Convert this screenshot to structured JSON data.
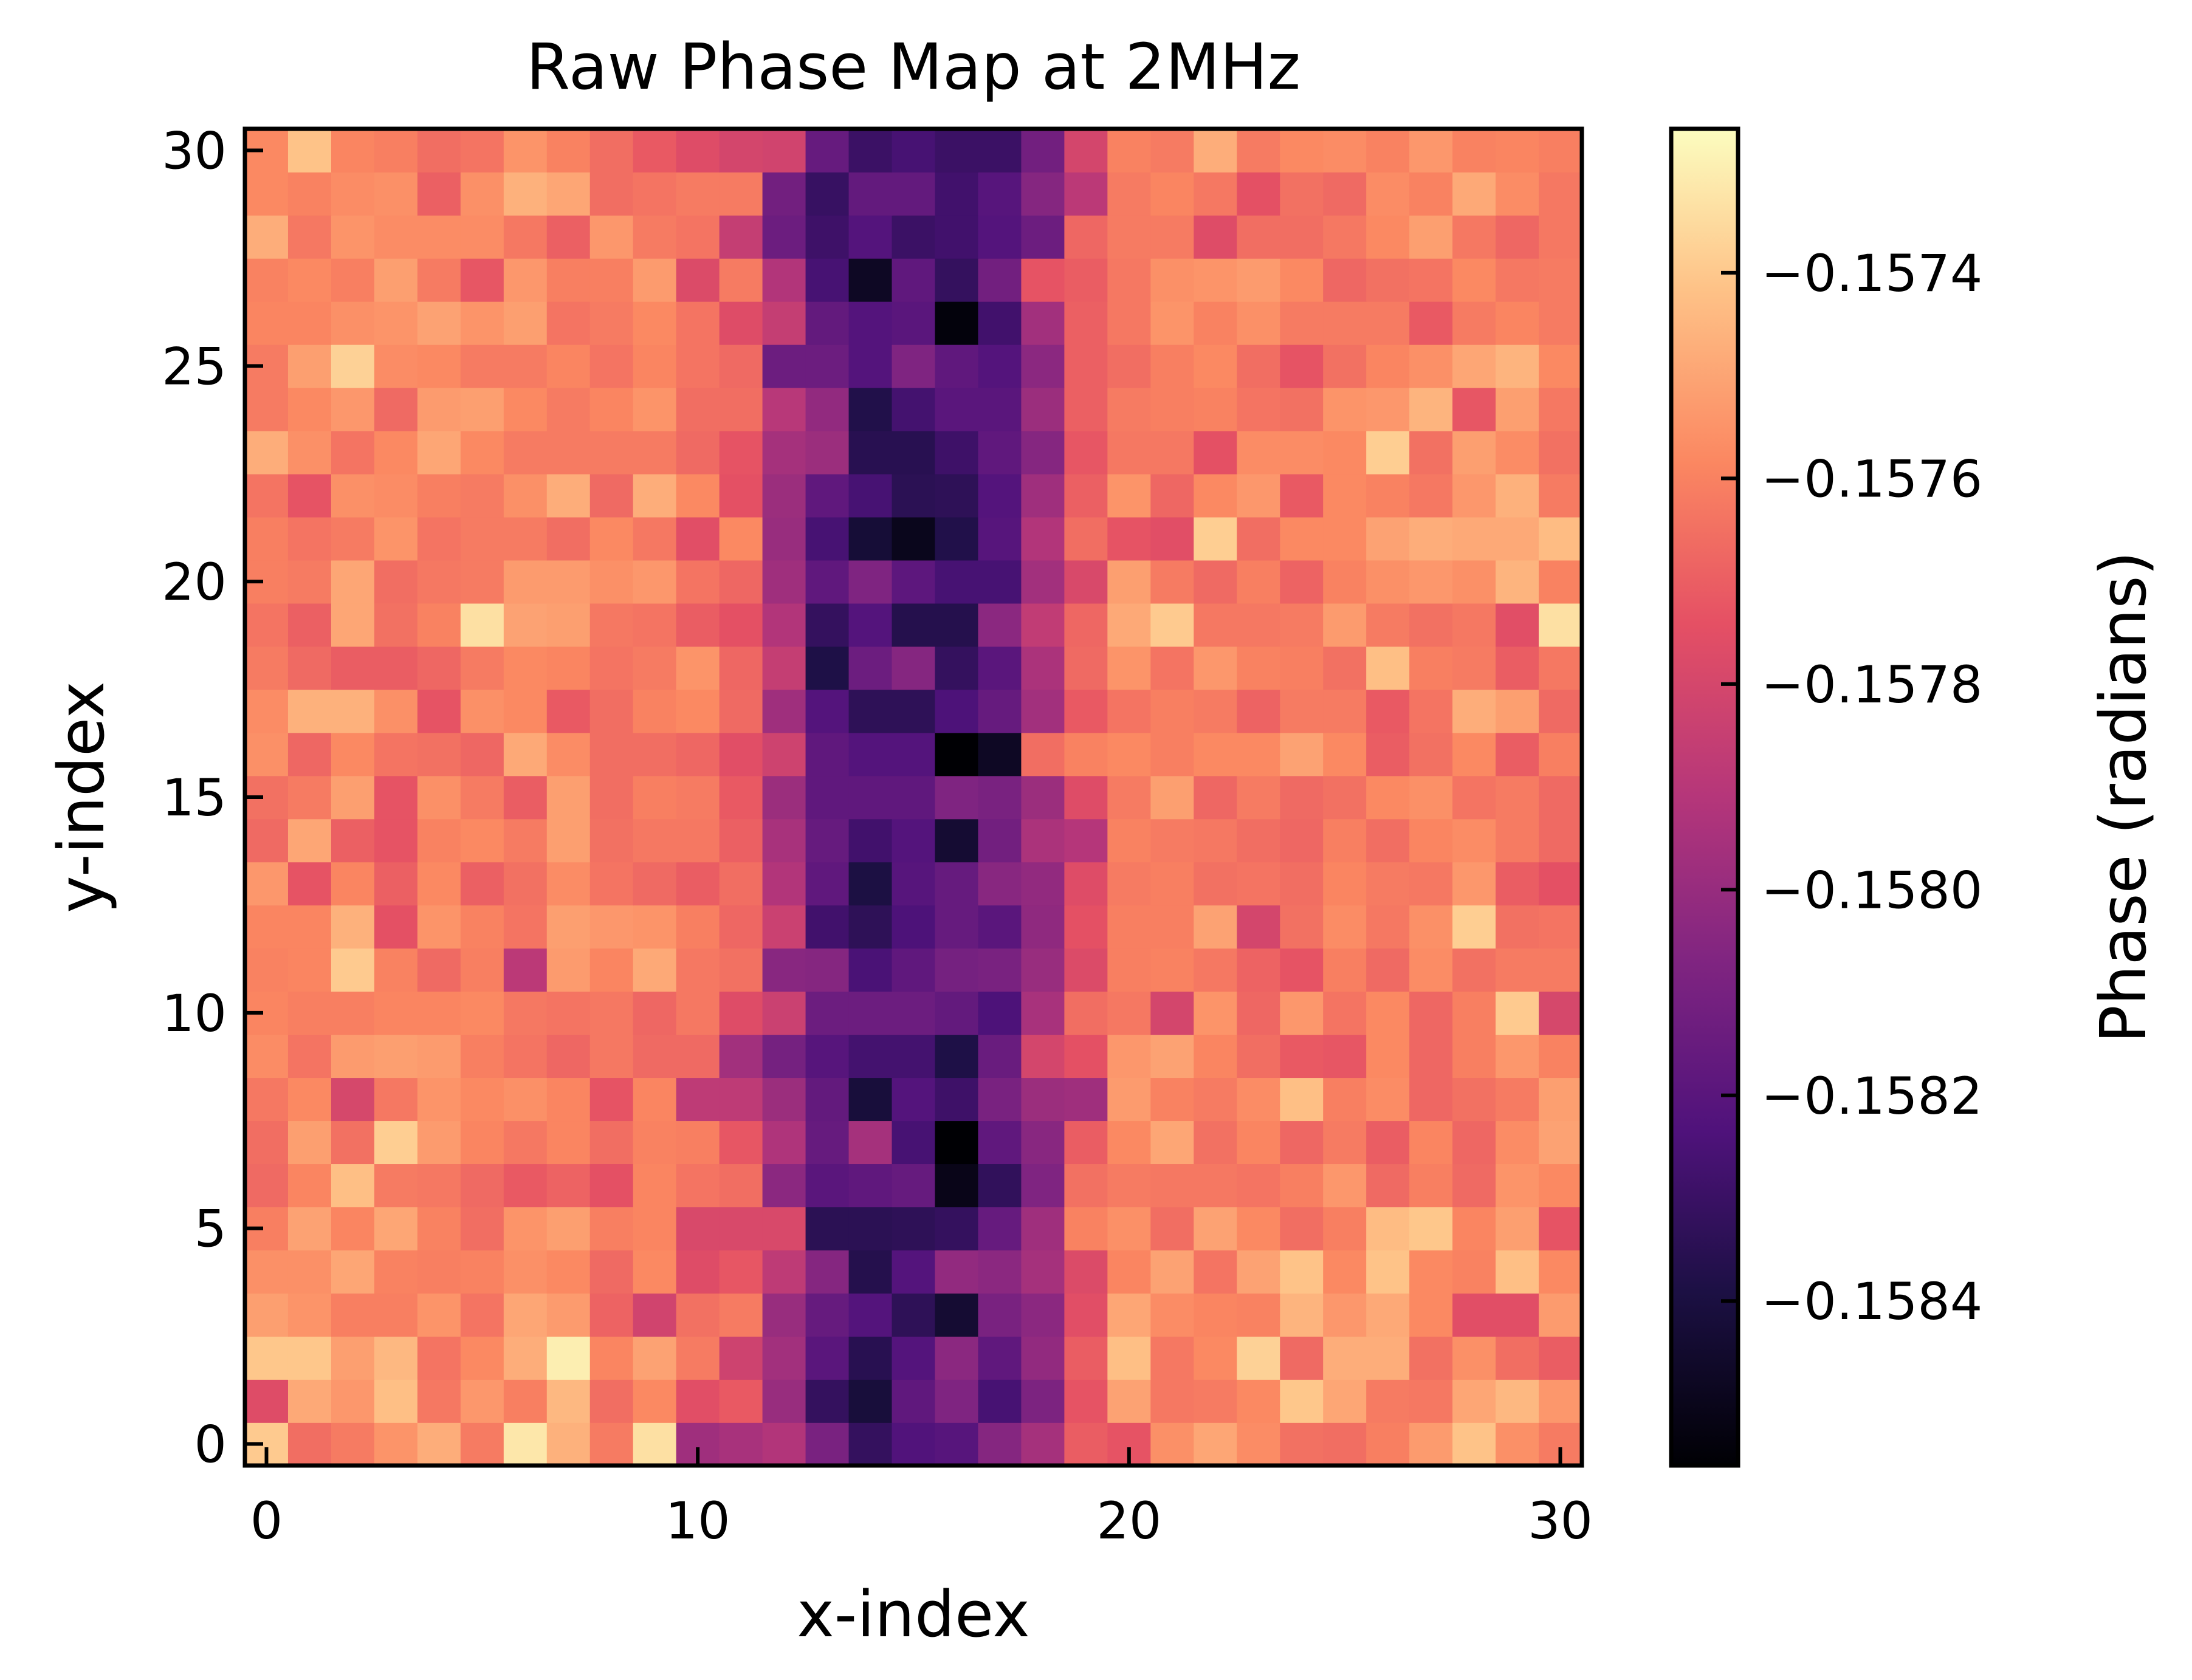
{
  "chart_data": {
    "type": "heatmap",
    "title": "Raw Phase Map at 2MHz",
    "xlabel": "x-index",
    "ylabel": "y-index",
    "xlim": [
      -0.5,
      30.5
    ],
    "ylim": [
      -0.5,
      30.5
    ],
    "xticks": [
      0,
      10,
      20,
      30
    ],
    "xtick_labels": [
      "0",
      "10",
      "20",
      "30"
    ],
    "yticks": [
      0,
      5,
      10,
      15,
      20,
      25,
      30
    ],
    "ytick_labels": [
      "0",
      "5",
      "10",
      "15",
      "20",
      "25",
      "30"
    ],
    "colormap": "magma",
    "colorbar": {
      "label": "Phase (radians)",
      "vmin": -0.15856,
      "vmax": -0.15726,
      "ticks": [
        -0.1574,
        -0.1576,
        -0.1578,
        -0.158,
        -0.1582,
        -0.1584
      ],
      "tick_labels": [
        "−0.1574",
        "−0.1576",
        "−0.1578",
        "−0.1580",
        "−0.1582",
        "−0.1584"
      ]
    },
    "grid": false,
    "description_of_values": "31x31 grid, rows indexed by y from 0 (bottom) to 30 (top), columns by x from 0 to 30; values in radians",
    "values": [
      [
        -0.1574,
        -0.15766,
        -0.15762,
        -0.15755,
        -0.15748,
        -0.15762,
        -0.15732,
        -0.15747,
        -0.15762,
        -0.15734,
        -0.15798,
        -0.15795,
        -0.15792,
        -0.1581,
        -0.15832,
        -0.15823,
        -0.15821,
        -0.15806,
        -0.15796,
        -0.15771,
        -0.15774,
        -0.15756,
        -0.1575,
        -0.15757,
        -0.15765,
        -0.15766,
        -0.15761,
        -0.15753,
        -0.15742,
        -0.15756,
        -0.15762
      ],
      [
        -0.15777,
        -0.15749,
        -0.15754,
        -0.15743,
        -0.15763,
        -0.15754,
        -0.15761,
        -0.15745,
        -0.15766,
        -0.15758,
        -0.15776,
        -0.15772,
        -0.158,
        -0.15832,
        -0.15842,
        -0.15818,
        -0.15808,
        -0.15826,
        -0.15809,
        -0.15774,
        -0.15751,
        -0.15763,
        -0.15762,
        -0.15758,
        -0.15741,
        -0.1575,
        -0.15762,
        -0.15763,
        -0.1575,
        -0.15745,
        -0.15754
      ],
      [
        -0.15741,
        -0.15741,
        -0.15752,
        -0.15745,
        -0.15764,
        -0.15758,
        -0.15748,
        -0.1573,
        -0.15759,
        -0.15751,
        -0.15762,
        -0.15783,
        -0.15797,
        -0.1582,
        -0.15836,
        -0.15822,
        -0.15804,
        -0.15818,
        -0.15802,
        -0.15771,
        -0.15743,
        -0.15763,
        -0.15758,
        -0.15738,
        -0.15767,
        -0.15748,
        -0.15748,
        -0.15765,
        -0.15756,
        -0.15766,
        -0.15771
      ],
      [
        -0.15752,
        -0.15755,
        -0.15761,
        -0.15761,
        -0.15755,
        -0.15764,
        -0.1575,
        -0.15753,
        -0.15769,
        -0.15782,
        -0.15765,
        -0.15762,
        -0.158,
        -0.15816,
        -0.15822,
        -0.15834,
        -0.15844,
        -0.1581,
        -0.15804,
        -0.15776,
        -0.1575,
        -0.15757,
        -0.15759,
        -0.1576,
        -0.15746,
        -0.15754,
        -0.15749,
        -0.15758,
        -0.15776,
        -0.15776,
        -0.15753
      ],
      [
        -0.15756,
        -0.15756,
        -0.1575,
        -0.1576,
        -0.15761,
        -0.1576,
        -0.15756,
        -0.15758,
        -0.15767,
        -0.15758,
        -0.15777,
        -0.15773,
        -0.15788,
        -0.15806,
        -0.15837,
        -0.15822,
        -0.15802,
        -0.15804,
        -0.15796,
        -0.15778,
        -0.15759,
        -0.15751,
        -0.15764,
        -0.15751,
        -0.15742,
        -0.15758,
        -0.15742,
        -0.15758,
        -0.1576,
        -0.15743,
        -0.15758
      ],
      [
        -0.15761,
        -0.15751,
        -0.15759,
        -0.1575,
        -0.1576,
        -0.15766,
        -0.15755,
        -0.15752,
        -0.15761,
        -0.15759,
        -0.15779,
        -0.15779,
        -0.15779,
        -0.15835,
        -0.15835,
        -0.15834,
        -0.15832,
        -0.15816,
        -0.15798,
        -0.1576,
        -0.15756,
        -0.15766,
        -0.15751,
        -0.15758,
        -0.15766,
        -0.15761,
        -0.15744,
        -0.15741,
        -0.15759,
        -0.15752,
        -0.15774
      ],
      [
        -0.15767,
        -0.15759,
        -0.15743,
        -0.15762,
        -0.15763,
        -0.15767,
        -0.15772,
        -0.15769,
        -0.15775,
        -0.15759,
        -0.15764,
        -0.15766,
        -0.15804,
        -0.1582,
        -0.15818,
        -0.15816,
        -0.15851,
        -0.15833,
        -0.15808,
        -0.15765,
        -0.15762,
        -0.15763,
        -0.15763,
        -0.15764,
        -0.15761,
        -0.15754,
        -0.15767,
        -0.15761,
        -0.15767,
        -0.15755,
        -0.15758
      ],
      [
        -0.15766,
        -0.15752,
        -0.15765,
        -0.15739,
        -0.15753,
        -0.15759,
        -0.15763,
        -0.15759,
        -0.15766,
        -0.1576,
        -0.15761,
        -0.15773,
        -0.15793,
        -0.15816,
        -0.15796,
        -0.15826,
        -0.15856,
        -0.15818,
        -0.15805,
        -0.15771,
        -0.15758,
        -0.1575,
        -0.15765,
        -0.15759,
        -0.15768,
        -0.15762,
        -0.15771,
        -0.15759,
        -0.15768,
        -0.15757,
        -0.15751
      ],
      [
        -0.15763,
        -0.15758,
        -0.1578,
        -0.15763,
        -0.15755,
        -0.15758,
        -0.15756,
        -0.15759,
        -0.15774,
        -0.15759,
        -0.15788,
        -0.15788,
        -0.15799,
        -0.15817,
        -0.15842,
        -0.15822,
        -0.15829,
        -0.1581,
        -0.15799,
        -0.15798,
        -0.15753,
        -0.1576,
        -0.15762,
        -0.15757,
        -0.15743,
        -0.15761,
        -0.15757,
        -0.15768,
        -0.15765,
        -0.15762,
        -0.15752
      ],
      [
        -0.15757,
        -0.15764,
        -0.15753,
        -0.15752,
        -0.15753,
        -0.15761,
        -0.15764,
        -0.15768,
        -0.15763,
        -0.15767,
        -0.15767,
        -0.15797,
        -0.15811,
        -0.15821,
        -0.15827,
        -0.15827,
        -0.15839,
        -0.15815,
        -0.15781,
        -0.15775,
        -0.15754,
        -0.15751,
        -0.15759,
        -0.15766,
        -0.15772,
        -0.15773,
        -0.15758,
        -0.15768,
        -0.15761,
        -0.15754,
        -0.1576
      ],
      [
        -0.15759,
        -0.15761,
        -0.15761,
        -0.15759,
        -0.15759,
        -0.15758,
        -0.15763,
        -0.15764,
        -0.15763,
        -0.15768,
        -0.15763,
        -0.15777,
        -0.15784,
        -0.15814,
        -0.15814,
        -0.15814,
        -0.15817,
        -0.15824,
        -0.15795,
        -0.15766,
        -0.15763,
        -0.15781,
        -0.15755,
        -0.15768,
        -0.15754,
        -0.15764,
        -0.15758,
        -0.15768,
        -0.15761,
        -0.1574,
        -0.1578
      ],
      [
        -0.1576,
        -0.15759,
        -0.1574,
        -0.1576,
        -0.15767,
        -0.15761,
        -0.15789,
        -0.15753,
        -0.15759,
        -0.15749,
        -0.15763,
        -0.15765,
        -0.15805,
        -0.15806,
        -0.15825,
        -0.15818,
        -0.15811,
        -0.1581,
        -0.158,
        -0.15778,
        -0.15761,
        -0.1576,
        -0.15763,
        -0.15769,
        -0.15774,
        -0.15761,
        -0.15767,
        -0.15757,
        -0.15765,
        -0.15762,
        -0.15762
      ],
      [
        -0.15759,
        -0.15759,
        -0.15747,
        -0.15775,
        -0.15755,
        -0.1576,
        -0.15764,
        -0.15752,
        -0.15754,
        -0.15755,
        -0.15761,
        -0.15768,
        -0.15784,
        -0.15828,
        -0.15834,
        -0.15824,
        -0.15816,
        -0.1582,
        -0.15803,
        -0.15775,
        -0.15761,
        -0.15761,
        -0.15751,
        -0.15781,
        -0.15765,
        -0.15757,
        -0.15763,
        -0.15756,
        -0.15739,
        -0.15765,
        -0.15764
      ],
      [
        -0.15754,
        -0.15774,
        -0.15759,
        -0.1577,
        -0.15758,
        -0.1577,
        -0.15765,
        -0.15757,
        -0.15764,
        -0.15767,
        -0.15771,
        -0.15766,
        -0.15792,
        -0.15818,
        -0.1584,
        -0.15821,
        -0.15816,
        -0.15805,
        -0.15802,
        -0.15777,
        -0.15762,
        -0.15761,
        -0.15765,
        -0.15764,
        -0.15766,
        -0.15759,
        -0.15762,
        -0.15763,
        -0.15754,
        -0.15771,
        -0.15775
      ],
      [
        -0.15767,
        -0.1575,
        -0.1577,
        -0.15774,
        -0.1576,
        -0.15758,
        -0.15762,
        -0.15752,
        -0.15765,
        -0.15763,
        -0.15763,
        -0.1577,
        -0.15795,
        -0.15816,
        -0.15828,
        -0.15822,
        -0.15844,
        -0.15812,
        -0.15794,
        -0.15791,
        -0.1576,
        -0.15762,
        -0.15763,
        -0.15766,
        -0.15768,
        -0.15761,
        -0.15766,
        -0.15759,
        -0.15757,
        -0.15762,
        -0.15767
      ],
      [
        -0.15765,
        -0.15762,
        -0.15752,
        -0.15774,
        -0.15756,
        -0.15762,
        -0.15771,
        -0.15752,
        -0.15766,
        -0.15761,
        -0.15762,
        -0.15772,
        -0.15799,
        -0.15818,
        -0.15818,
        -0.15818,
        -0.15808,
        -0.1581,
        -0.15799,
        -0.15777,
        -0.15762,
        -0.15752,
        -0.15768,
        -0.15762,
        -0.15767,
        -0.15765,
        -0.15758,
        -0.15756,
        -0.15764,
        -0.15762,
        -0.15767
      ],
      [
        -0.15756,
        -0.15768,
        -0.15758,
        -0.15764,
        -0.15765,
        -0.15768,
        -0.15749,
        -0.15757,
        -0.15766,
        -0.15766,
        -0.15768,
        -0.15776,
        -0.15783,
        -0.15818,
        -0.15822,
        -0.15822,
        -0.15856,
        -0.15848,
        -0.15766,
        -0.1576,
        -0.15758,
        -0.15761,
        -0.15758,
        -0.15758,
        -0.15751,
        -0.15758,
        -0.15771,
        -0.15765,
        -0.15758,
        -0.15771,
        -0.15761
      ],
      [
        -0.15757,
        -0.15747,
        -0.15747,
        -0.15756,
        -0.15774,
        -0.15756,
        -0.15758,
        -0.15772,
        -0.15766,
        -0.1576,
        -0.15758,
        -0.15767,
        -0.15798,
        -0.15822,
        -0.15834,
        -0.15834,
        -0.15824,
        -0.15816,
        -0.15797,
        -0.15772,
        -0.15764,
        -0.15761,
        -0.15762,
        -0.15769,
        -0.15762,
        -0.15762,
        -0.15772,
        -0.15764,
        -0.15748,
        -0.15752,
        -0.15767
      ],
      [
        -0.15762,
        -0.15767,
        -0.15771,
        -0.15771,
        -0.15768,
        -0.15762,
        -0.15758,
        -0.15759,
        -0.15764,
        -0.15762,
        -0.15755,
        -0.15768,
        -0.15786,
        -0.15839,
        -0.15814,
        -0.15806,
        -0.15832,
        -0.1582,
        -0.15794,
        -0.15767,
        -0.15755,
        -0.15764,
        -0.15754,
        -0.1576,
        -0.15761,
        -0.15765,
        -0.15743,
        -0.15761,
        -0.15762,
        -0.15771,
        -0.15763
      ],
      [
        -0.15764,
        -0.1577,
        -0.1575,
        -0.15765,
        -0.1576,
        -0.15734,
        -0.15751,
        -0.15752,
        -0.15763,
        -0.15764,
        -0.15771,
        -0.15775,
        -0.15792,
        -0.15832,
        -0.15822,
        -0.15837,
        -0.15837,
        -0.15804,
        -0.15787,
        -0.15768,
        -0.15749,
        -0.1574,
        -0.15763,
        -0.15763,
        -0.15762,
        -0.15753,
        -0.15762,
        -0.15765,
        -0.15763,
        -0.15776,
        -0.15734
      ],
      [
        -0.15761,
        -0.15762,
        -0.1575,
        -0.15766,
        -0.15763,
        -0.15762,
        -0.15753,
        -0.15753,
        -0.15756,
        -0.15754,
        -0.15764,
        -0.15768,
        -0.15798,
        -0.15818,
        -0.15808,
        -0.15819,
        -0.15826,
        -0.15826,
        -0.15797,
        -0.15779,
        -0.15752,
        -0.15762,
        -0.15767,
        -0.15761,
        -0.15769,
        -0.1576,
        -0.15756,
        -0.15754,
        -0.15756,
        -0.15746,
        -0.1576
      ],
      [
        -0.15761,
        -0.15764,
        -0.15762,
        -0.15755,
        -0.15764,
        -0.15762,
        -0.15762,
        -0.15766,
        -0.15758,
        -0.15763,
        -0.15776,
        -0.15758,
        -0.158,
        -0.15826,
        -0.15843,
        -0.1585,
        -0.15838,
        -0.15821,
        -0.15792,
        -0.15766,
        -0.15774,
        -0.15776,
        -0.15739,
        -0.15766,
        -0.15758,
        -0.15758,
        -0.15751,
        -0.15748,
        -0.15749,
        -0.15749,
        -0.15744
      ],
      [
        -0.15764,
        -0.15774,
        -0.15756,
        -0.15757,
        -0.15761,
        -0.15762,
        -0.15756,
        -0.15748,
        -0.15767,
        -0.15748,
        -0.15758,
        -0.15775,
        -0.15799,
        -0.15818,
        -0.15826,
        -0.15835,
        -0.15834,
        -0.15822,
        -0.15798,
        -0.1577,
        -0.15755,
        -0.15768,
        -0.15758,
        -0.15754,
        -0.15772,
        -0.15758,
        -0.1576,
        -0.15763,
        -0.15754,
        -0.15747,
        -0.15762
      ],
      [
        -0.15748,
        -0.15756,
        -0.15764,
        -0.15758,
        -0.1575,
        -0.15758,
        -0.15762,
        -0.15762,
        -0.15762,
        -0.15762,
        -0.15767,
        -0.15774,
        -0.15796,
        -0.15799,
        -0.15836,
        -0.15836,
        -0.15829,
        -0.15818,
        -0.15806,
        -0.15773,
        -0.15763,
        -0.15763,
        -0.15775,
        -0.15757,
        -0.15757,
        -0.15758,
        -0.15739,
        -0.15765,
        -0.15752,
        -0.15757,
        -0.15765
      ],
      [
        -0.15762,
        -0.15758,
        -0.15754,
        -0.15767,
        -0.15753,
        -0.15752,
        -0.15758,
        -0.15762,
        -0.15759,
        -0.15755,
        -0.15766,
        -0.15766,
        -0.1579,
        -0.15802,
        -0.15838,
        -0.15827,
        -0.1582,
        -0.1582,
        -0.15799,
        -0.1577,
        -0.15762,
        -0.15761,
        -0.1576,
        -0.15764,
        -0.15765,
        -0.15755,
        -0.15754,
        -0.15746,
        -0.15773,
        -0.15752,
        -0.15763
      ],
      [
        -0.15762,
        -0.15752,
        -0.15738,
        -0.15757,
        -0.15758,
        -0.15762,
        -0.15762,
        -0.15759,
        -0.15764,
        -0.15759,
        -0.15764,
        -0.15767,
        -0.15814,
        -0.15814,
        -0.15822,
        -0.15808,
        -0.15818,
        -0.15822,
        -0.15804,
        -0.1577,
        -0.15766,
        -0.15761,
        -0.15758,
        -0.15766,
        -0.15774,
        -0.15765,
        -0.15759,
        -0.15756,
        -0.1575,
        -0.15746,
        -0.15758
      ],
      [
        -0.15759,
        -0.15759,
        -0.15756,
        -0.15755,
        -0.15751,
        -0.15755,
        -0.15752,
        -0.15764,
        -0.15762,
        -0.15758,
        -0.15764,
        -0.15777,
        -0.15786,
        -0.15817,
        -0.15822,
        -0.1582,
        -0.15854,
        -0.15828,
        -0.15797,
        -0.1577,
        -0.15763,
        -0.15755,
        -0.1576,
        -0.15756,
        -0.15762,
        -0.15762,
        -0.15762,
        -0.15772,
        -0.15762,
        -0.15759,
        -0.15762
      ],
      [
        -0.1576,
        -0.15758,
        -0.15761,
        -0.15752,
        -0.15762,
        -0.15773,
        -0.15754,
        -0.15761,
        -0.15761,
        -0.15753,
        -0.15778,
        -0.15762,
        -0.15792,
        -0.15826,
        -0.15848,
        -0.15818,
        -0.15832,
        -0.15812,
        -0.15774,
        -0.15771,
        -0.15763,
        -0.15756,
        -0.15755,
        -0.15753,
        -0.15758,
        -0.15768,
        -0.15765,
        -0.15764,
        -0.15758,
        -0.15763,
        -0.15762
      ],
      [
        -0.15748,
        -0.15763,
        -0.15755,
        -0.15757,
        -0.15757,
        -0.15757,
        -0.15763,
        -0.1577,
        -0.15754,
        -0.15762,
        -0.15764,
        -0.15786,
        -0.15814,
        -0.15829,
        -0.15822,
        -0.1583,
        -0.15828,
        -0.15822,
        -0.15814,
        -0.15768,
        -0.15762,
        -0.15762,
        -0.15777,
        -0.15766,
        -0.15766,
        -0.15763,
        -0.15758,
        -0.15752,
        -0.15763,
        -0.15768,
        -0.15763
      ],
      [
        -0.15758,
        -0.1576,
        -0.15757,
        -0.15756,
        -0.1577,
        -0.15756,
        -0.15747,
        -0.1575,
        -0.15766,
        -0.15764,
        -0.15762,
        -0.15762,
        -0.15812,
        -0.15831,
        -0.15817,
        -0.15817,
        -0.15828,
        -0.15821,
        -0.15806,
        -0.15789,
        -0.15762,
        -0.15759,
        -0.15763,
        -0.15775,
        -0.15765,
        -0.15767,
        -0.15757,
        -0.1576,
        -0.15749,
        -0.15757,
        -0.15763
      ],
      [
        -0.15758,
        -0.15742,
        -0.15759,
        -0.15761,
        -0.15766,
        -0.15764,
        -0.15755,
        -0.1576,
        -0.15766,
        -0.15772,
        -0.15777,
        -0.15781,
        -0.15782,
        -0.15816,
        -0.1583,
        -0.15826,
        -0.1583,
        -0.1583,
        -0.15812,
        -0.15781,
        -0.1576,
        -0.15762,
        -0.15748,
        -0.15762,
        -0.15758,
        -0.15757,
        -0.1576,
        -0.15754,
        -0.1576,
        -0.15759,
        -0.15761
      ]
    ]
  }
}
